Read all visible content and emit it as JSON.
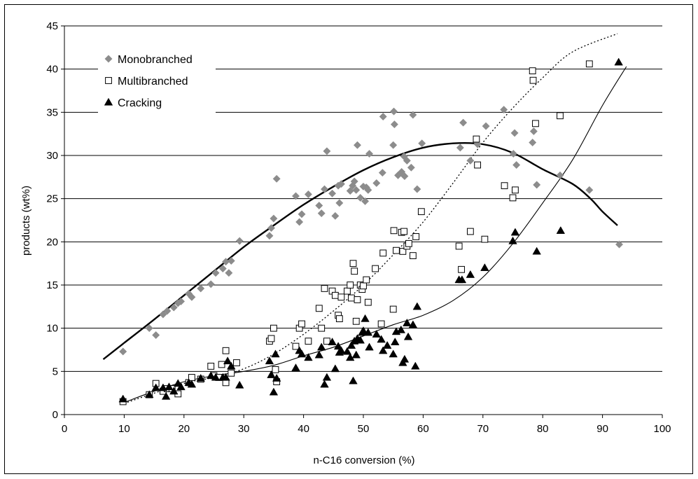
{
  "chart_data": {
    "type": "scatter",
    "title": "",
    "xlabel": "n-C16 conversion (%)",
    "ylabel": "products (wt%)",
    "xlim": [
      0,
      100
    ],
    "ylim": [
      0,
      45
    ],
    "xticks": [
      "0",
      "10",
      "20",
      "30",
      "40",
      "50",
      "60",
      "70",
      "80",
      "90",
      "100"
    ],
    "yticks": [
      "0",
      "5",
      "10",
      "15",
      "20",
      "25",
      "30",
      "35",
      "40",
      "45"
    ],
    "grid": "horizontal",
    "legend_position": "top-left",
    "series": [
      {
        "name": "Monobranched",
        "marker": "diamond",
        "color": "#8c8c8c",
        "points": [
          [
            9.8,
            7.3
          ],
          [
            14.2,
            10.0
          ],
          [
            15.3,
            9.2
          ],
          [
            16.5,
            11.6
          ],
          [
            17.2,
            12.0
          ],
          [
            18.3,
            12.4
          ],
          [
            19.0,
            12.9
          ],
          [
            19.5,
            13.1
          ],
          [
            20.8,
            14.0
          ],
          [
            21.3,
            13.6
          ],
          [
            22.8,
            14.6
          ],
          [
            24.5,
            15.1
          ],
          [
            25.3,
            16.4
          ],
          [
            26.5,
            16.9
          ],
          [
            27.0,
            17.7
          ],
          [
            27.5,
            16.4
          ],
          [
            27.9,
            17.8
          ],
          [
            29.3,
            20.1
          ],
          [
            34.3,
            20.7
          ],
          [
            34.6,
            21.6
          ],
          [
            35.0,
            22.7
          ],
          [
            35.5,
            27.3
          ],
          [
            38.7,
            25.3
          ],
          [
            39.3,
            22.3
          ],
          [
            39.7,
            23.2
          ],
          [
            40.8,
            25.5
          ],
          [
            42.6,
            24.2
          ],
          [
            43.0,
            23.3
          ],
          [
            43.5,
            26.1
          ],
          [
            43.9,
            30.5
          ],
          [
            44.8,
            25.6
          ],
          [
            45.3,
            23.0
          ],
          [
            45.8,
            26.5
          ],
          [
            46.0,
            24.5
          ],
          [
            46.3,
            26.7
          ],
          [
            47.8,
            25.9
          ],
          [
            48.2,
            26.5
          ],
          [
            48.5,
            27.0
          ],
          [
            48.8,
            26.0
          ],
          [
            49.0,
            31.2
          ],
          [
            49.5,
            25.1
          ],
          [
            50.0,
            26.4
          ],
          [
            50.3,
            24.7
          ],
          [
            50.5,
            26.3
          ],
          [
            50.8,
            26.0
          ],
          [
            51.0,
            30.2
          ],
          [
            52.2,
            26.8
          ],
          [
            53.2,
            28.0
          ],
          [
            53.3,
            34.5
          ],
          [
            55.0,
            31.2
          ],
          [
            55.1,
            35.1
          ],
          [
            55.2,
            33.6
          ],
          [
            55.8,
            27.7
          ],
          [
            56.4,
            28.1
          ],
          [
            56.8,
            29.9
          ],
          [
            56.9,
            27.6
          ],
          [
            57.3,
            29.4
          ],
          [
            58.0,
            28.6
          ],
          [
            58.3,
            34.7
          ],
          [
            59.0,
            26.1
          ],
          [
            59.8,
            31.4
          ],
          [
            66.2,
            30.9
          ],
          [
            66.7,
            33.8
          ],
          [
            67.9,
            29.4
          ],
          [
            68.9,
            31.6
          ],
          [
            69.1,
            31.3
          ],
          [
            70.5,
            33.4
          ],
          [
            73.5,
            35.3
          ],
          [
            75.1,
            30.2
          ],
          [
            75.3,
            32.6
          ],
          [
            75.6,
            28.9
          ],
          [
            78.3,
            31.5
          ],
          [
            78.5,
            32.8
          ],
          [
            79.0,
            26.6
          ],
          [
            82.9,
            27.7
          ],
          [
            87.8,
            26.0
          ],
          [
            92.8,
            19.7
          ]
        ]
      },
      {
        "name": "Multibranched",
        "marker": "open-square",
        "color": "#000000",
        "points": [
          [
            9.8,
            1.5
          ],
          [
            14.2,
            2.3
          ],
          [
            15.3,
            3.6
          ],
          [
            16.5,
            2.7
          ],
          [
            17.2,
            3.0
          ],
          [
            18.0,
            3.0
          ],
          [
            19.0,
            2.4
          ],
          [
            20.8,
            3.7
          ],
          [
            21.3,
            4.3
          ],
          [
            22.8,
            4.1
          ],
          [
            24.5,
            5.6
          ],
          [
            25.0,
            4.5
          ],
          [
            25.8,
            4.3
          ],
          [
            26.3,
            5.8
          ],
          [
            27.0,
            7.4
          ],
          [
            27.0,
            3.7
          ],
          [
            27.9,
            4.8
          ],
          [
            28.8,
            6.0
          ],
          [
            34.3,
            8.5
          ],
          [
            34.6,
            8.8
          ],
          [
            35.0,
            10.0
          ],
          [
            35.3,
            5.2
          ],
          [
            35.5,
            3.8
          ],
          [
            38.7,
            7.9
          ],
          [
            39.3,
            10.0
          ],
          [
            39.7,
            10.5
          ],
          [
            40.8,
            8.5
          ],
          [
            42.6,
            12.3
          ],
          [
            43.0,
            10.0
          ],
          [
            43.5,
            14.6
          ],
          [
            43.9,
            8.5
          ],
          [
            44.8,
            14.3
          ],
          [
            45.3,
            13.8
          ],
          [
            45.8,
            11.5
          ],
          [
            46.0,
            11.1
          ],
          [
            46.3,
            13.6
          ],
          [
            47.3,
            14.3
          ],
          [
            47.8,
            15.0
          ],
          [
            48.0,
            13.5
          ],
          [
            48.3,
            17.5
          ],
          [
            48.5,
            16.6
          ],
          [
            48.8,
            10.8
          ],
          [
            49.0,
            13.3
          ],
          [
            49.5,
            15.0
          ],
          [
            49.8,
            14.5
          ],
          [
            50.0,
            14.9
          ],
          [
            50.5,
            15.6
          ],
          [
            50.8,
            13.0
          ],
          [
            52.0,
            16.9
          ],
          [
            53.0,
            10.5
          ],
          [
            53.3,
            18.7
          ],
          [
            55.0,
            12.2
          ],
          [
            55.1,
            21.3
          ],
          [
            55.5,
            19.0
          ],
          [
            56.4,
            21.1
          ],
          [
            56.6,
            18.9
          ],
          [
            56.8,
            21.2
          ],
          [
            57.3,
            19.5
          ],
          [
            57.6,
            19.8
          ],
          [
            58.3,
            18.4
          ],
          [
            58.8,
            20.6
          ],
          [
            59.7,
            23.5
          ],
          [
            66.0,
            19.5
          ],
          [
            66.4,
            16.8
          ],
          [
            67.9,
            21.2
          ],
          [
            68.9,
            31.9
          ],
          [
            69.1,
            28.9
          ],
          [
            70.3,
            20.3
          ],
          [
            73.6,
            26.5
          ],
          [
            75.0,
            25.1
          ],
          [
            75.4,
            26.0
          ],
          [
            78.3,
            39.8
          ],
          [
            78.4,
            38.7
          ],
          [
            78.8,
            33.7
          ],
          [
            82.9,
            34.6
          ],
          [
            87.8,
            40.6
          ]
        ]
      },
      {
        "name": "Cracking",
        "marker": "filled-triangle",
        "color": "#000000",
        "points": [
          [
            9.8,
            1.8
          ],
          [
            14.2,
            2.3
          ],
          [
            15.3,
            3.1
          ],
          [
            16.5,
            3.1
          ],
          [
            17.0,
            2.1
          ],
          [
            17.5,
            3.2
          ],
          [
            18.3,
            2.7
          ],
          [
            19.0,
            3.6
          ],
          [
            19.5,
            3.2
          ],
          [
            20.8,
            3.7
          ],
          [
            21.3,
            3.5
          ],
          [
            22.8,
            4.2
          ],
          [
            24.5,
            4.5
          ],
          [
            25.3,
            4.3
          ],
          [
            26.5,
            4.3
          ],
          [
            27.0,
            4.3
          ],
          [
            27.3,
            6.2
          ],
          [
            27.9,
            5.6
          ],
          [
            29.3,
            3.4
          ],
          [
            34.3,
            6.2
          ],
          [
            34.6,
            4.6
          ],
          [
            35.0,
            2.6
          ],
          [
            35.3,
            7.0
          ],
          [
            35.5,
            4.2
          ],
          [
            38.7,
            5.4
          ],
          [
            39.3,
            7.4
          ],
          [
            39.7,
            7.0
          ],
          [
            40.8,
            6.6
          ],
          [
            42.6,
            6.9
          ],
          [
            43.0,
            7.8
          ],
          [
            43.5,
            3.5
          ],
          [
            43.9,
            4.3
          ],
          [
            44.8,
            8.4
          ],
          [
            45.3,
            5.3
          ],
          [
            45.8,
            7.9
          ],
          [
            46.0,
            7.2
          ],
          [
            46.3,
            7.4
          ],
          [
            47.3,
            7.3
          ],
          [
            47.8,
            6.6
          ],
          [
            48.0,
            8.0
          ],
          [
            48.3,
            3.9
          ],
          [
            48.5,
            8.5
          ],
          [
            48.8,
            6.9
          ],
          [
            49.0,
            8.8
          ],
          [
            49.5,
            8.6
          ],
          [
            49.8,
            9.5
          ],
          [
            50.0,
            9.7
          ],
          [
            50.3,
            11.1
          ],
          [
            50.8,
            9.5
          ],
          [
            51.0,
            7.8
          ],
          [
            52.2,
            9.3
          ],
          [
            53.0,
            8.7
          ],
          [
            53.3,
            7.4
          ],
          [
            54.0,
            8.0
          ],
          [
            55.0,
            7.0
          ],
          [
            55.3,
            8.4
          ],
          [
            55.5,
            9.6
          ],
          [
            56.3,
            9.8
          ],
          [
            56.6,
            6.0
          ],
          [
            56.9,
            6.4
          ],
          [
            57.3,
            10.6
          ],
          [
            57.5,
            9.0
          ],
          [
            58.3,
            10.4
          ],
          [
            58.7,
            5.6
          ],
          [
            59.0,
            12.5
          ],
          [
            66.0,
            15.6
          ],
          [
            66.5,
            15.6
          ],
          [
            67.9,
            16.2
          ],
          [
            70.3,
            17.0
          ],
          [
            75.0,
            20.1
          ],
          [
            75.4,
            21.1
          ],
          [
            79.0,
            18.9
          ],
          [
            83.0,
            21.3
          ],
          [
            92.7,
            40.8
          ]
        ]
      }
    ],
    "trendlines": [
      {
        "series": "Monobranched",
        "style": "solid-thick",
        "points": [
          [
            6.5,
            6.4
          ],
          [
            10,
            8.3
          ],
          [
            15,
            11.0
          ],
          [
            20,
            13.8
          ],
          [
            25,
            16.6
          ],
          [
            30,
            19.4
          ],
          [
            35,
            21.9
          ],
          [
            40,
            24.3
          ],
          [
            45,
            26.4
          ],
          [
            50,
            28.3
          ],
          [
            55,
            29.8
          ],
          [
            60,
            30.9
          ],
          [
            65,
            31.4
          ],
          [
            70,
            31.3
          ],
          [
            75,
            30.3
          ],
          [
            80,
            28.4
          ],
          [
            85,
            26.7
          ],
          [
            88,
            25.0
          ],
          [
            90,
            23.5
          ],
          [
            92.5,
            21.9
          ]
        ]
      },
      {
        "series": "Multibranched",
        "style": "dotted",
        "points": [
          [
            10,
            1.3
          ],
          [
            20,
            3.6
          ],
          [
            25,
            4.3
          ],
          [
            30,
            5.3
          ],
          [
            35,
            7.0
          ],
          [
            40,
            9.3
          ],
          [
            45,
            12.0
          ],
          [
            50,
            15.0
          ],
          [
            55,
            18.5
          ],
          [
            60,
            22.3
          ],
          [
            65,
            26.8
          ],
          [
            70,
            31.5
          ],
          [
            75,
            35.5
          ],
          [
            80,
            39.0
          ],
          [
            85,
            42.0
          ],
          [
            92.5,
            44.1
          ]
        ]
      },
      {
        "series": "Cracking",
        "style": "solid-thin",
        "points": [
          [
            10,
            1.4
          ],
          [
            15,
            2.7
          ],
          [
            20,
            3.8
          ],
          [
            25,
            4.5
          ],
          [
            30,
            5.0
          ],
          [
            35,
            5.7
          ],
          [
            40,
            6.8
          ],
          [
            45,
            7.8
          ],
          [
            50,
            9.1
          ],
          [
            55,
            10.4
          ],
          [
            60,
            11.5
          ],
          [
            65,
            13.2
          ],
          [
            70,
            15.9
          ],
          [
            75,
            19.8
          ],
          [
            80,
            24.5
          ],
          [
            85,
            29.5
          ],
          [
            90,
            35.8
          ],
          [
            94,
            40.3
          ]
        ]
      }
    ]
  }
}
